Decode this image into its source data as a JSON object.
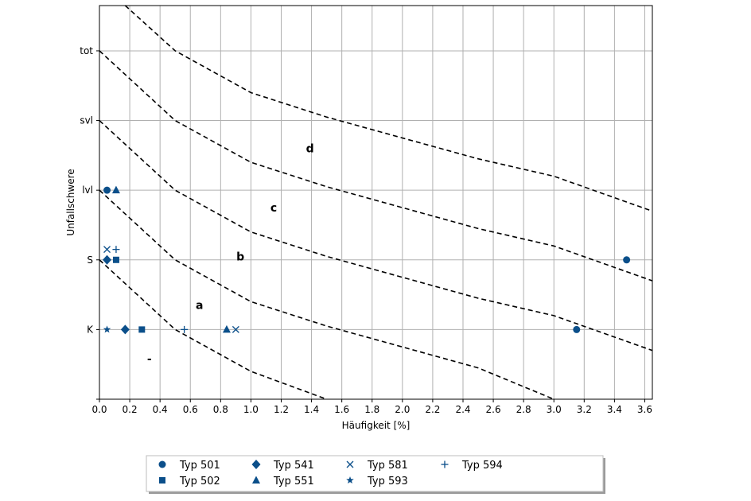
{
  "chart_data": {
    "type": "scatter",
    "xlabel": "Häufigkeit [%]",
    "ylabel": "Unfallschwere",
    "xlim": [
      0,
      3.65
    ],
    "ylim": [
      -1,
      4.65
    ],
    "xticks": [
      "0.0",
      "0.2",
      "0.4",
      "0.6",
      "0.8",
      "1.0",
      "1.2",
      "1.4",
      "1.6",
      "1.8",
      "2.0",
      "2.2",
      "2.4",
      "2.6",
      "2.8",
      "3.0",
      "3.2",
      "3.4",
      "3.6"
    ],
    "yticks": [
      {
        "value": 0,
        "label": "K"
      },
      {
        "value": 1,
        "label": "S"
      },
      {
        "value": 2,
        "label": "lvl"
      },
      {
        "value": 3,
        "label": "svl"
      },
      {
        "value": 4,
        "label": "tot"
      }
    ],
    "grid": true,
    "legend_position": "bottom",
    "color": "#0b4f8a",
    "boundary_curves": [
      {
        "style": "dashed",
        "points": [
          [
            0,
            1
          ],
          [
            0.5,
            0.0
          ],
          [
            1.0,
            -0.6
          ],
          [
            1.5,
            -1.0
          ]
        ]
      },
      {
        "style": "dashed",
        "points": [
          [
            0,
            2
          ],
          [
            0.5,
            1.0
          ],
          [
            1.0,
            0.4
          ],
          [
            1.5,
            0.05
          ],
          [
            2.0,
            -0.25
          ],
          [
            2.5,
            -0.55
          ],
          [
            3.0,
            -1.0
          ]
        ]
      },
      {
        "style": "dashed",
        "points": [
          [
            0,
            3
          ],
          [
            0.5,
            2.0
          ],
          [
            1.0,
            1.4
          ],
          [
            1.5,
            1.05
          ],
          [
            2.0,
            0.75
          ],
          [
            2.5,
            0.45
          ],
          [
            3.0,
            0.2
          ],
          [
            3.65,
            -0.3
          ]
        ]
      },
      {
        "style": "dashed",
        "points": [
          [
            0,
            4
          ],
          [
            0.5,
            3.0
          ],
          [
            1.0,
            2.4
          ],
          [
            1.5,
            2.05
          ],
          [
            2.0,
            1.75
          ],
          [
            2.5,
            1.45
          ],
          [
            3.0,
            1.2
          ],
          [
            3.65,
            0.7
          ]
        ]
      },
      {
        "style": "dashed",
        "points": [
          [
            0.17,
            4.65
          ],
          [
            0.5,
            4.0
          ],
          [
            1.0,
            3.4
          ],
          [
            1.5,
            3.05
          ],
          [
            2.0,
            2.75
          ],
          [
            2.5,
            2.45
          ],
          [
            3.0,
            2.2
          ],
          [
            3.65,
            1.7
          ]
        ]
      }
    ],
    "region_labels": [
      {
        "text": "-",
        "x": 0.33,
        "y": -0.42
      },
      {
        "text": "a",
        "x": 0.66,
        "y": 0.35
      },
      {
        "text": "b",
        "x": 0.93,
        "y": 1.05
      },
      {
        "text": "c",
        "x": 1.15,
        "y": 1.75
      },
      {
        "text": "d",
        "x": 1.39,
        "y": 2.6
      }
    ],
    "series": [
      {
        "name": "Typ 501",
        "marker": "circle",
        "points": [
          [
            0.05,
            2
          ],
          [
            3.48,
            1
          ],
          [
            3.15,
            0
          ]
        ]
      },
      {
        "name": "Typ 502",
        "marker": "square",
        "points": [
          [
            0.11,
            1
          ],
          [
            0.28,
            0
          ]
        ]
      },
      {
        "name": "Typ 541",
        "marker": "diamond",
        "points": [
          [
            0.05,
            1
          ],
          [
            0.17,
            0
          ]
        ]
      },
      {
        "name": "Typ 551",
        "marker": "triangle",
        "points": [
          [
            0.11,
            2
          ],
          [
            0.84,
            0
          ]
        ]
      },
      {
        "name": "Typ 581",
        "marker": "x",
        "points": [
          [
            0.05,
            1.15
          ],
          [
            0.9,
            0
          ]
        ]
      },
      {
        "name": "Typ 593",
        "marker": "star",
        "points": [
          [
            0.05,
            0
          ]
        ]
      },
      {
        "name": "Typ 594",
        "marker": "plus",
        "points": [
          [
            0.11,
            1.15
          ],
          [
            0.56,
            0
          ]
        ]
      }
    ]
  }
}
